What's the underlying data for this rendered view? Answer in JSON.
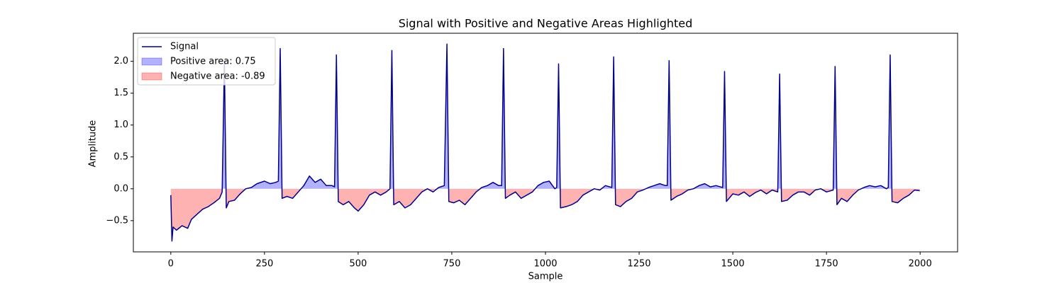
{
  "chart_data": {
    "type": "line",
    "title": "Signal with Positive and Negative Areas Highlighted",
    "x_label": "Sample",
    "y_label": "Amplitude",
    "xlim": [
      -100,
      2100
    ],
    "ylim": [
      -0.99,
      2.44
    ],
    "xticks": [
      0,
      250,
      500,
      750,
      1000,
      1250,
      1500,
      1750,
      2000
    ],
    "yticks": [
      {
        "value": -0.5,
        "label": "−0.5"
      },
      {
        "value": 0,
        "label": "0.0"
      },
      {
        "value": 0.5,
        "label": "0.5"
      },
      {
        "value": 1,
        "label": "1.0"
      },
      {
        "value": 1.5,
        "label": "1.5"
      },
      {
        "value": 2,
        "label": "2.0"
      }
    ],
    "legend": "upper left",
    "x": [
      0,
      3,
      6,
      15,
      30,
      45,
      55,
      70,
      85,
      100,
      115,
      130,
      137,
      143,
      148,
      155,
      170,
      185,
      200,
      215,
      230,
      250,
      265,
      280,
      287,
      292,
      297,
      310,
      325,
      340,
      355,
      370,
      385,
      400,
      415,
      430,
      437,
      442,
      447,
      460,
      475,
      490,
      500,
      515,
      530,
      545,
      560,
      575,
      585,
      590,
      595,
      610,
      625,
      640,
      655,
      670,
      685,
      700,
      715,
      730,
      737,
      742,
      755,
      770,
      785,
      800,
      815,
      830,
      845,
      860,
      875,
      883,
      888,
      893,
      905,
      920,
      935,
      950,
      965,
      980,
      995,
      1010,
      1025,
      1030,
      1035,
      1040,
      1055,
      1070,
      1085,
      1100,
      1115,
      1130,
      1145,
      1160,
      1177,
      1182,
      1187,
      1200,
      1215,
      1230,
      1245,
      1260,
      1275,
      1290,
      1305,
      1320,
      1325,
      1330,
      1335,
      1350,
      1365,
      1380,
      1395,
      1410,
      1425,
      1440,
      1455,
      1473,
      1478,
      1483,
      1500,
      1515,
      1530,
      1545,
      1560,
      1575,
      1590,
      1605,
      1620,
      1625,
      1630,
      1645,
      1660,
      1675,
      1690,
      1705,
      1720,
      1735,
      1750,
      1768,
      1773,
      1778,
      1790,
      1805,
      1820,
      1835,
      1850,
      1865,
      1880,
      1895,
      1910,
      1915,
      1920,
      1925,
      1940,
      1955,
      1970,
      1985,
      1999
    ],
    "series": [
      {
        "name": "Signal",
        "color": "#00008b",
        "values": [
          -0.1,
          -0.82,
          -0.6,
          -0.65,
          -0.58,
          -0.62,
          -0.48,
          -0.4,
          -0.32,
          -0.28,
          -0.22,
          -0.15,
          -0.05,
          2.0,
          -0.3,
          -0.2,
          -0.18,
          -0.08,
          0.0,
          0.02,
          0.08,
          0.12,
          0.08,
          0.1,
          0.12,
          2.2,
          -0.15,
          -0.12,
          -0.15,
          -0.05,
          0.05,
          0.2,
          0.1,
          0.15,
          0.05,
          0.05,
          0.03,
          2.1,
          -0.2,
          -0.25,
          -0.2,
          -0.3,
          -0.35,
          -0.25,
          -0.1,
          -0.05,
          -0.1,
          -0.05,
          0.0,
          2.17,
          -0.25,
          -0.2,
          -0.3,
          -0.25,
          -0.15,
          -0.05,
          0.0,
          -0.05,
          0.02,
          0.05,
          2.27,
          -0.2,
          -0.22,
          -0.18,
          -0.25,
          -0.15,
          -0.05,
          0.02,
          0.05,
          0.1,
          0.05,
          0.05,
          2.2,
          -0.15,
          -0.1,
          -0.05,
          -0.15,
          -0.1,
          -0.05,
          0.05,
          0.1,
          0.12,
          0.0,
          0.02,
          1.96,
          -0.3,
          -0.28,
          -0.25,
          -0.2,
          -0.1,
          -0.05,
          0.0,
          -0.02,
          0.05,
          0.02,
          2.07,
          -0.25,
          -0.28,
          -0.2,
          -0.15,
          -0.05,
          -0.02,
          0.02,
          0.05,
          0.08,
          0.05,
          0.05,
          2.01,
          -0.18,
          -0.12,
          -0.08,
          -0.02,
          0.0,
          0.05,
          0.08,
          0.03,
          0.05,
          0.02,
          1.84,
          -0.2,
          -0.08,
          -0.1,
          -0.05,
          -0.12,
          -0.06,
          -0.02,
          -0.08,
          -0.02,
          -0.05,
          1.8,
          -0.2,
          -0.18,
          -0.1,
          -0.05,
          -0.05,
          -0.1,
          -0.02,
          0.0,
          -0.05,
          -0.02,
          1.92,
          -0.25,
          -0.15,
          -0.2,
          -0.1,
          -0.02,
          0.02,
          0.05,
          0.03,
          0.05,
          0.0,
          0.02,
          2.1,
          -0.2,
          -0.22,
          -0.15,
          -0.1,
          -0.02,
          -0.03
        ]
      }
    ],
    "fills": [
      {
        "name": "Positive area: 0.75",
        "color": "#0000ff",
        "opacity": 0.3,
        "where": "above"
      },
      {
        "name": "Negative area: -0.89",
        "color": "#ff0000",
        "opacity": 0.3,
        "where": "below"
      }
    ]
  }
}
